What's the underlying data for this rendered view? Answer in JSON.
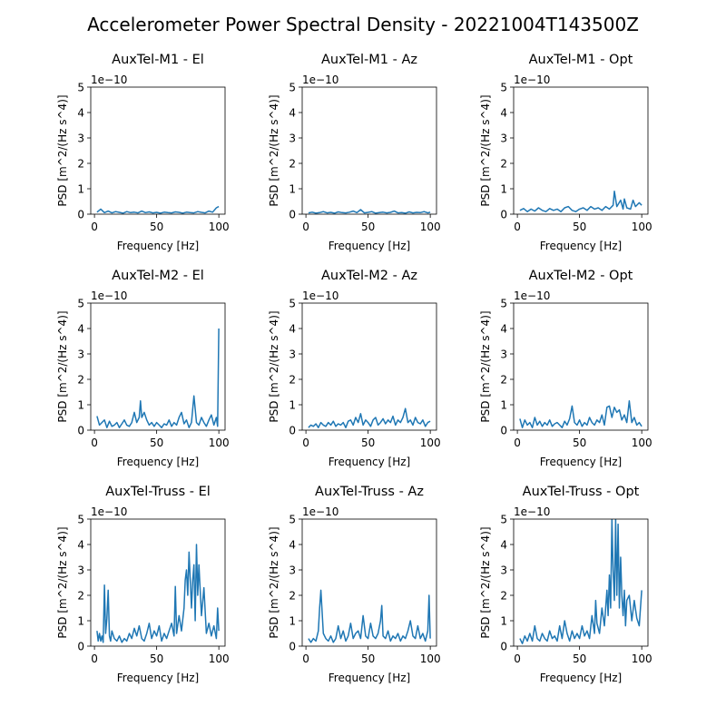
{
  "figure": {
    "title": "Accelerometer Power Spectral Density - 20221004T143500Z",
    "line_color": "#1f77b4"
  },
  "chart_data": [
    {
      "type": "line",
      "title": "AuxTel-M1 - El",
      "xlabel": "Frequency [Hz]",
      "ylabel": "PSD [m^2/(Hz s^4)]",
      "y_offset_label": "1e−10",
      "xlim": [
        -3,
        105
      ],
      "ylim": [
        0,
        5
      ],
      "xticks": [
        0,
        50,
        100
      ],
      "yticks": [
        0,
        1,
        2,
        3,
        4,
        5
      ],
      "series": [
        {
          "x": [
            2,
            5,
            8,
            11,
            14,
            17,
            20,
            23,
            26,
            29,
            32,
            35,
            38,
            41,
            44,
            47,
            50,
            53,
            56,
            59,
            62,
            65,
            68,
            71,
            74,
            77,
            80,
            83,
            86,
            89,
            92,
            95,
            98,
            100
          ],
          "y": [
            0.08,
            0.2,
            0.06,
            0.12,
            0.05,
            0.1,
            0.07,
            0.04,
            0.1,
            0.06,
            0.08,
            0.05,
            0.12,
            0.06,
            0.09,
            0.05,
            0.07,
            0.04,
            0.08,
            0.06,
            0.05,
            0.09,
            0.07,
            0.04,
            0.08,
            0.06,
            0.05,
            0.1,
            0.07,
            0.05,
            0.12,
            0.08,
            0.25,
            0.3
          ]
        }
      ]
    },
    {
      "type": "line",
      "title": "AuxTel-M1 - Az",
      "xlabel": "Frequency [Hz]",
      "ylabel": "PSD [m^2/(Hz s^4)]",
      "y_offset_label": "1e−10",
      "xlim": [
        -3,
        105
      ],
      "ylim": [
        0,
        5
      ],
      "xticks": [
        0,
        50,
        100
      ],
      "yticks": [
        0,
        1,
        2,
        3,
        4,
        5
      ],
      "series": [
        {
          "x": [
            2,
            5,
            8,
            11,
            14,
            17,
            20,
            23,
            26,
            29,
            32,
            35,
            38,
            41,
            44,
            47,
            50,
            53,
            56,
            59,
            62,
            65,
            68,
            71,
            74,
            77,
            80,
            83,
            86,
            89,
            92,
            95,
            98,
            100
          ],
          "y": [
            0.05,
            0.08,
            0.04,
            0.06,
            0.1,
            0.05,
            0.07,
            0.04,
            0.09,
            0.06,
            0.05,
            0.08,
            0.12,
            0.06,
            0.18,
            0.05,
            0.07,
            0.1,
            0.04,
            0.06,
            0.08,
            0.05,
            0.07,
            0.12,
            0.05,
            0.06,
            0.04,
            0.09,
            0.05,
            0.07,
            0.06,
            0.1,
            0.05,
            0.08
          ]
        }
      ]
    },
    {
      "type": "line",
      "title": "AuxTel-M1 - Opt",
      "xlabel": "Frequency [Hz]",
      "ylabel": "PSD [m^2/(Hz s^4)]",
      "y_offset_label": "1e−10",
      "xlim": [
        -3,
        105
      ],
      "ylim": [
        0,
        5
      ],
      "xticks": [
        0,
        50,
        100
      ],
      "yticks": [
        0,
        1,
        2,
        3,
        4,
        5
      ],
      "series": [
        {
          "x": [
            2,
            5,
            8,
            11,
            14,
            17,
            20,
            23,
            26,
            29,
            32,
            35,
            38,
            41,
            44,
            47,
            50,
            53,
            56,
            59,
            62,
            65,
            68,
            71,
            74,
            77,
            78,
            80,
            83,
            85,
            86,
            88,
            91,
            93,
            95,
            98,
            100
          ],
          "y": [
            0.15,
            0.22,
            0.1,
            0.2,
            0.12,
            0.25,
            0.15,
            0.1,
            0.22,
            0.15,
            0.2,
            0.1,
            0.25,
            0.3,
            0.15,
            0.1,
            0.2,
            0.25,
            0.15,
            0.3,
            0.2,
            0.25,
            0.15,
            0.3,
            0.2,
            0.35,
            0.9,
            0.3,
            0.55,
            0.2,
            0.6,
            0.25,
            0.2,
            0.55,
            0.3,
            0.45,
            0.35
          ]
        }
      ]
    },
    {
      "type": "line",
      "title": "AuxTel-M2 - El",
      "xlabel": "Frequency [Hz]",
      "ylabel": "PSD [m^2/(Hz s^4)]",
      "y_offset_label": "1e−10",
      "xlim": [
        -3,
        105
      ],
      "ylim": [
        0,
        5
      ],
      "xticks": [
        0,
        50,
        100
      ],
      "yticks": [
        0,
        1,
        2,
        3,
        4,
        5
      ],
      "series": [
        {
          "x": [
            2,
            4,
            6,
            8,
            10,
            12,
            14,
            16,
            18,
            20,
            22,
            24,
            26,
            28,
            30,
            32,
            34,
            36,
            37,
            38,
            40,
            42,
            44,
            46,
            48,
            50,
            52,
            54,
            56,
            58,
            60,
            62,
            64,
            66,
            68,
            70,
            72,
            74,
            76,
            78,
            80,
            82,
            84,
            86,
            88,
            90,
            92,
            94,
            96,
            98,
            99,
            100
          ],
          "y": [
            0.55,
            0.2,
            0.3,
            0.4,
            0.1,
            0.35,
            0.15,
            0.2,
            0.3,
            0.1,
            0.25,
            0.4,
            0.2,
            0.15,
            0.3,
            0.7,
            0.3,
            0.5,
            1.15,
            0.5,
            0.7,
            0.4,
            0.2,
            0.3,
            0.15,
            0.3,
            0.2,
            0.1,
            0.25,
            0.2,
            0.4,
            0.15,
            0.3,
            0.2,
            0.5,
            0.7,
            0.25,
            0.4,
            0.1,
            0.3,
            1.35,
            0.3,
            0.2,
            0.5,
            0.3,
            0.15,
            0.4,
            0.6,
            0.2,
            0.5,
            0.15,
            4.0
          ]
        }
      ]
    },
    {
      "type": "line",
      "title": "AuxTel-M2 - Az",
      "xlabel": "Frequency [Hz]",
      "ylabel": "PSD [m^2/(Hz s^4)]",
      "y_offset_label": "1e−10",
      "xlim": [
        -3,
        105
      ],
      "ylim": [
        0,
        5
      ],
      "xticks": [
        0,
        50,
        100
      ],
      "yticks": [
        0,
        1,
        2,
        3,
        4,
        5
      ],
      "series": [
        {
          "x": [
            2,
            4,
            6,
            8,
            10,
            12,
            14,
            16,
            18,
            20,
            22,
            24,
            26,
            28,
            30,
            32,
            34,
            36,
            38,
            40,
            42,
            44,
            46,
            48,
            50,
            52,
            54,
            56,
            58,
            60,
            62,
            64,
            66,
            68,
            70,
            72,
            74,
            76,
            78,
            80,
            82,
            84,
            86,
            88,
            90,
            92,
            94,
            96,
            98,
            100
          ],
          "y": [
            0.1,
            0.2,
            0.15,
            0.25,
            0.1,
            0.3,
            0.2,
            0.15,
            0.3,
            0.2,
            0.35,
            0.15,
            0.25,
            0.2,
            0.3,
            0.1,
            0.35,
            0.4,
            0.2,
            0.5,
            0.3,
            0.65,
            0.2,
            0.4,
            0.3,
            0.15,
            0.4,
            0.5,
            0.2,
            0.3,
            0.45,
            0.25,
            0.4,
            0.3,
            0.55,
            0.2,
            0.4,
            0.3,
            0.5,
            0.85,
            0.3,
            0.4,
            0.2,
            0.5,
            0.3,
            0.25,
            0.4,
            0.15,
            0.3,
            0.35
          ]
        }
      ]
    },
    {
      "type": "line",
      "title": "AuxTel-M2 - Opt",
      "xlabel": "Frequency [Hz]",
      "ylabel": "PSD [m^2/(Hz s^4)]",
      "y_offset_label": "1e−10",
      "xlim": [
        -3,
        105
      ],
      "ylim": [
        0,
        5
      ],
      "xticks": [
        0,
        50,
        100
      ],
      "yticks": [
        0,
        1,
        2,
        3,
        4,
        5
      ],
      "series": [
        {
          "x": [
            2,
            4,
            6,
            8,
            10,
            12,
            14,
            16,
            18,
            20,
            22,
            24,
            26,
            28,
            30,
            32,
            34,
            36,
            38,
            40,
            42,
            44,
            46,
            48,
            50,
            52,
            54,
            56,
            58,
            60,
            62,
            64,
            66,
            68,
            70,
            72,
            74,
            76,
            78,
            80,
            82,
            84,
            86,
            88,
            90,
            92,
            94,
            96,
            98,
            100
          ],
          "y": [
            0.45,
            0.1,
            0.4,
            0.2,
            0.3,
            0.1,
            0.5,
            0.2,
            0.35,
            0.15,
            0.3,
            0.2,
            0.4,
            0.15,
            0.25,
            0.3,
            0.2,
            0.1,
            0.35,
            0.2,
            0.45,
            0.95,
            0.3,
            0.2,
            0.4,
            0.15,
            0.3,
            0.2,
            0.5,
            0.3,
            0.2,
            0.4,
            0.3,
            0.6,
            0.2,
            0.9,
            0.95,
            0.5,
            0.9,
            0.7,
            0.8,
            0.4,
            0.6,
            0.3,
            1.15,
            0.3,
            0.5,
            0.2,
            0.3,
            0.15
          ]
        }
      ]
    },
    {
      "type": "line",
      "title": "AuxTel-Truss - El",
      "xlabel": "Frequency [Hz]",
      "ylabel": "PSD [m^2/(Hz s^4)]",
      "y_offset_label": "1e−10",
      "xlim": [
        -3,
        105
      ],
      "ylim": [
        0,
        5
      ],
      "xticks": [
        0,
        50,
        100
      ],
      "yticks": [
        0,
        1,
        2,
        3,
        4,
        5
      ],
      "series": [
        {
          "x": [
            2,
            3,
            4,
            5,
            6,
            7,
            8,
            9,
            10,
            11,
            12,
            13,
            14,
            16,
            18,
            20,
            22,
            24,
            26,
            28,
            30,
            32,
            34,
            36,
            38,
            40,
            42,
            44,
            46,
            48,
            50,
            52,
            54,
            56,
            58,
            60,
            62,
            64,
            65,
            66,
            68,
            70,
            72,
            73,
            74,
            75,
            76,
            78,
            79,
            80,
            81,
            82,
            83,
            84,
            86,
            88,
            90,
            92,
            94,
            96,
            98,
            99,
            100
          ],
          "y": [
            0.6,
            0.2,
            0.5,
            0.2,
            0.4,
            0.15,
            2.4,
            0.5,
            1.1,
            2.2,
            0.4,
            0.2,
            0.6,
            0.3,
            0.2,
            0.4,
            0.15,
            0.3,
            0.2,
            0.5,
            0.3,
            0.7,
            0.4,
            0.8,
            0.3,
            0.2,
            0.5,
            0.9,
            0.3,
            0.6,
            0.4,
            0.8,
            0.2,
            0.5,
            0.3,
            0.6,
            0.9,
            0.4,
            2.35,
            0.5,
            1.2,
            0.6,
            1.5,
            2.6,
            3.0,
            2.0,
            3.7,
            1.5,
            2.6,
            3.2,
            1.0,
            4.0,
            2.0,
            3.2,
            1.2,
            2.3,
            0.5,
            0.9,
            0.4,
            0.8,
            0.3,
            1.5,
            0.6
          ]
        }
      ]
    },
    {
      "type": "line",
      "title": "AuxTel-Truss - Az",
      "xlabel": "Frequency [Hz]",
      "ylabel": "PSD [m^2/(Hz s^4)]",
      "y_offset_label": "1e−10",
      "xlim": [
        -3,
        105
      ],
      "ylim": [
        0,
        5
      ],
      "xticks": [
        0,
        50,
        100
      ],
      "yticks": [
        0,
        1,
        2,
        3,
        4,
        5
      ],
      "series": [
        {
          "x": [
            2,
            4,
            6,
            8,
            10,
            11,
            12,
            14,
            16,
            18,
            20,
            22,
            24,
            26,
            28,
            30,
            32,
            34,
            36,
            38,
            40,
            42,
            44,
            46,
            48,
            50,
            52,
            54,
            56,
            58,
            60,
            61,
            62,
            64,
            66,
            68,
            70,
            72,
            74,
            76,
            78,
            80,
            82,
            84,
            86,
            88,
            90,
            92,
            94,
            96,
            98,
            99,
            100
          ],
          "y": [
            0.3,
            0.15,
            0.3,
            0.2,
            0.6,
            1.5,
            2.2,
            0.5,
            0.3,
            0.2,
            0.4,
            0.15,
            0.3,
            0.8,
            0.3,
            0.6,
            0.2,
            0.4,
            0.9,
            0.3,
            0.5,
            0.6,
            0.3,
            1.2,
            0.4,
            0.3,
            0.9,
            0.4,
            0.3,
            0.5,
            1.0,
            1.6,
            0.4,
            0.3,
            0.6,
            0.2,
            0.4,
            0.3,
            0.5,
            0.2,
            0.4,
            0.3,
            0.6,
            1.0,
            0.4,
            0.3,
            0.8,
            0.3,
            0.5,
            0.2,
            0.6,
            2.0,
            0.3
          ]
        }
      ]
    },
    {
      "type": "line",
      "title": "AuxTel-Truss - Opt",
      "xlabel": "Frequency [Hz]",
      "ylabel": "PSD [m^2/(Hz s^4)]",
      "y_offset_label": "1e−10",
      "xlim": [
        -3,
        105
      ],
      "ylim": [
        0,
        5
      ],
      "xticks": [
        0,
        50,
        100
      ],
      "yticks": [
        0,
        1,
        2,
        3,
        4,
        5
      ],
      "series": [
        {
          "x": [
            2,
            4,
            6,
            8,
            10,
            12,
            14,
            16,
            18,
            20,
            22,
            24,
            26,
            28,
            30,
            32,
            34,
            36,
            38,
            40,
            42,
            44,
            46,
            48,
            50,
            52,
            54,
            56,
            58,
            60,
            62,
            63,
            64,
            66,
            68,
            70,
            72,
            73,
            74,
            75,
            76,
            77,
            78,
            79,
            80,
            81,
            82,
            83,
            84,
            85,
            86,
            87,
            88,
            90,
            92,
            94,
            96,
            98,
            100
          ],
          "y": [
            0.3,
            0.1,
            0.4,
            0.2,
            0.5,
            0.2,
            0.8,
            0.3,
            0.2,
            0.5,
            0.3,
            0.2,
            0.6,
            0.3,
            0.4,
            0.2,
            0.8,
            0.3,
            1.0,
            0.5,
            0.2,
            0.6,
            0.3,
            0.5,
            0.3,
            0.8,
            0.4,
            0.6,
            0.3,
            1.2,
            0.5,
            1.8,
            0.9,
            0.5,
            1.5,
            0.8,
            2.2,
            1.2,
            2.8,
            1.5,
            5.0,
            3.0,
            1.8,
            5.0,
            2.0,
            4.8,
            1.5,
            3.5,
            2.0,
            1.2,
            2.2,
            0.8,
            1.8,
            2.0,
            1.0,
            1.8,
            1.1,
            0.8,
            2.2
          ]
        }
      ]
    }
  ]
}
